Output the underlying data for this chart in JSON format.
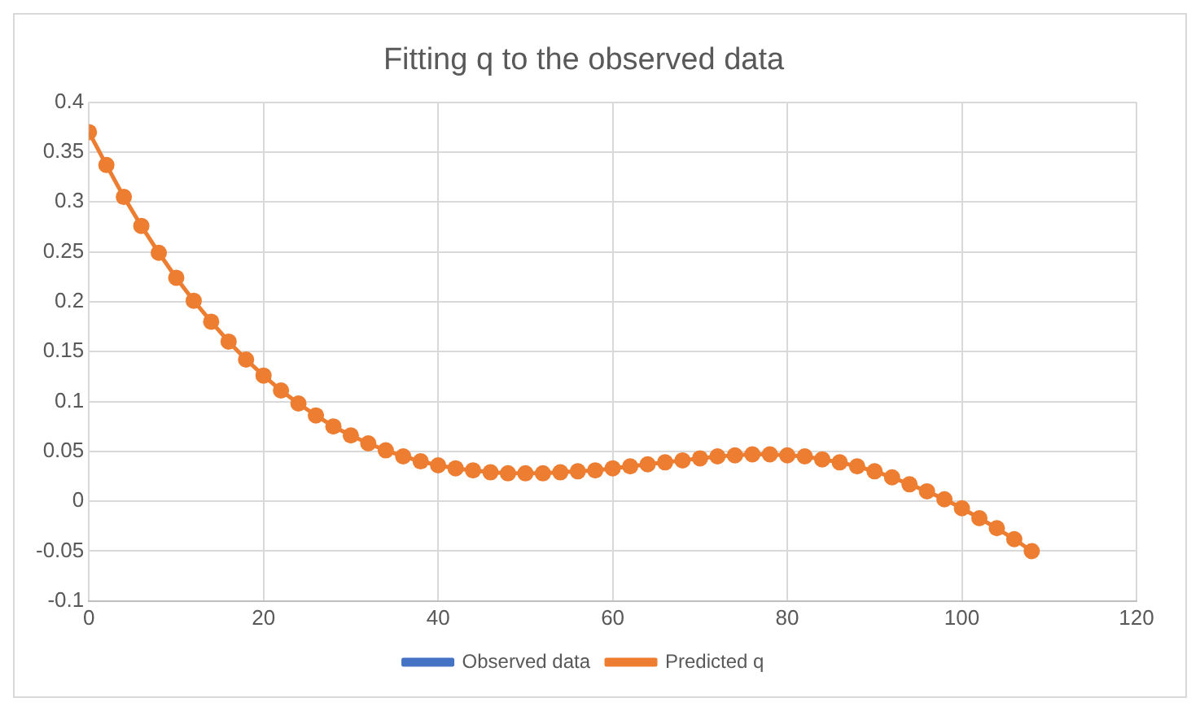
{
  "chart_data": {
    "type": "line",
    "title": "Fitting q to the observed data",
    "xlim": [
      0,
      120
    ],
    "xticks": [
      0,
      20,
      40,
      60,
      80,
      100,
      120
    ],
    "ylim": [
      -0.1,
      0.4
    ],
    "yticks": [
      {
        "value": -0.1,
        "label": "-0.1"
      },
      {
        "value": -0.05,
        "label": "-0.05"
      },
      {
        "value": 0,
        "label": "0"
      },
      {
        "value": 0.05,
        "label": "0.05"
      },
      {
        "value": 0.1,
        "label": "0.1"
      },
      {
        "value": 0.15,
        "label": "0.15"
      },
      {
        "value": 0.2,
        "label": "0.2"
      },
      {
        "value": 0.25,
        "label": "0.25"
      },
      {
        "value": 0.3,
        "label": "0.3"
      },
      {
        "value": 0.35,
        "label": "0.35"
      },
      {
        "value": 0.4,
        "label": "0.4"
      }
    ],
    "grid": true,
    "legend": "bottom",
    "marker": "circle",
    "line_style": "solid",
    "x": [
      0,
      2,
      4,
      6,
      8,
      10,
      12,
      14,
      16,
      18,
      20,
      22,
      24,
      26,
      28,
      30,
      32,
      34,
      36,
      38,
      40,
      42,
      44,
      46,
      48,
      50,
      52,
      54,
      56,
      58,
      60,
      62,
      64,
      66,
      68,
      70,
      72,
      74,
      76,
      78,
      80,
      82,
      84,
      86,
      88,
      90,
      92,
      94,
      96,
      98,
      100,
      102,
      104,
      106,
      108
    ],
    "series": [
      {
        "name": "Observed data",
        "color": "#4472c4",
        "values": [
          null,
          null,
          null,
          null,
          null,
          null,
          null,
          null,
          null,
          null,
          null,
          null,
          null,
          null,
          null,
          null,
          null,
          null,
          null,
          null,
          null,
          null,
          null,
          null,
          null,
          null,
          null,
          null,
          null,
          null,
          null,
          null,
          null,
          null,
          null,
          null,
          null,
          null,
          null,
          null,
          null,
          null,
          null,
          null,
          null,
          null,
          null,
          null,
          null,
          null,
          null,
          null,
          null,
          null,
          null
        ]
      },
      {
        "name": "Predicted q",
        "color": "#ed7d31",
        "values": [
          0.37,
          0.337,
          0.305,
          0.276,
          0.249,
          0.224,
          0.201,
          0.18,
          0.16,
          0.142,
          0.126,
          0.111,
          0.098,
          0.086,
          0.075,
          0.066,
          0.058,
          0.051,
          0.045,
          0.04,
          0.036,
          0.033,
          0.031,
          0.029,
          0.028,
          0.028,
          0.028,
          0.029,
          0.03,
          0.031,
          0.033,
          0.035,
          0.037,
          0.039,
          0.041,
          0.043,
          0.045,
          0.046,
          0.047,
          0.047,
          0.046,
          0.045,
          0.042,
          0.039,
          0.035,
          0.03,
          0.024,
          0.017,
          0.01,
          0.002,
          -0.007,
          -0.017,
          -0.027,
          -0.038,
          -0.05
        ]
      }
    ]
  }
}
